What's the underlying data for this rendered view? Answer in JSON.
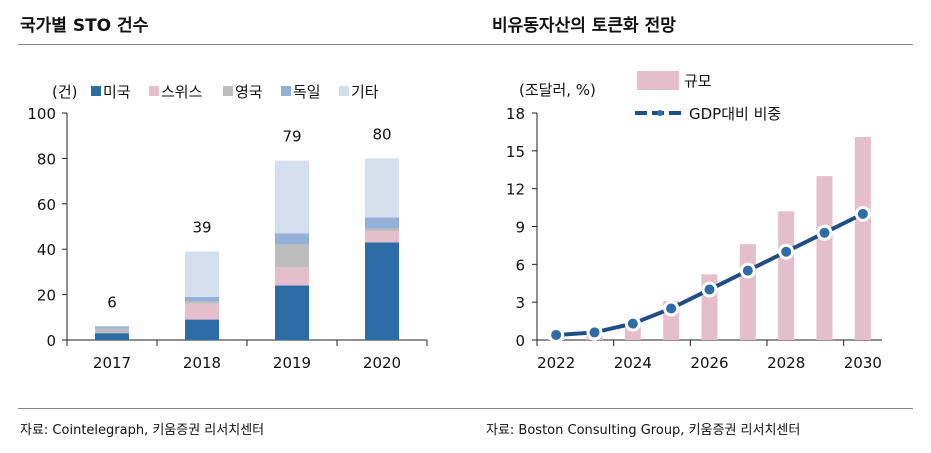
{
  "left": {
    "title": "국가별 STO 건수",
    "source": "자료: Cointelegraph, 키움증권 리서치센터"
  },
  "right": {
    "title": "비유동자산의 토큰화 전망",
    "source": "자료: Boston Consulting Group, 키움증권 리서치센터"
  },
  "chart_data": [
    {
      "type": "bar",
      "stacked": true,
      "unit_label": "(건)",
      "categories": [
        "2017",
        "2018",
        "2019",
        "2020"
      ],
      "series": [
        {
          "name": "미국",
          "color": "#2e6ca8",
          "values": [
            3,
            9,
            24,
            43
          ]
        },
        {
          "name": "스위스",
          "color": "#e4bfcb",
          "values": [
            0,
            7,
            8,
            5
          ]
        },
        {
          "name": "영국",
          "color": "#bdbdbd",
          "values": [
            2,
            1,
            10,
            1
          ]
        },
        {
          "name": "독일",
          "color": "#94b0d6",
          "values": [
            1,
            2,
            5,
            5
          ]
        },
        {
          "name": "기타",
          "color": "#d5e0ee",
          "values": [
            0,
            20,
            32,
            26
          ]
        }
      ],
      "totals": [
        6,
        39,
        79,
        80
      ],
      "ylim": [
        0,
        100
      ],
      "yticks": [
        0,
        20,
        40,
        60,
        80,
        100
      ]
    },
    {
      "type": "bar+line",
      "unit_label": "(조달러, %)",
      "categories": [
        "2022",
        "2023",
        "2024",
        "2025",
        "2026",
        "2027",
        "2028",
        "2029",
        "2030"
      ],
      "xtick_labels": [
        "2022",
        "2024",
        "2026",
        "2028",
        "2030"
      ],
      "series": [
        {
          "name": "규모",
          "type": "bar",
          "color": "#e4bfcb",
          "values": [
            0.1,
            0.3,
            1.1,
            3.1,
            5.2,
            7.6,
            10.2,
            13.0,
            16.1
          ]
        },
        {
          "name": "GDP대비 비중",
          "type": "line",
          "color": "#1f4e86",
          "values": [
            0.4,
            0.6,
            1.3,
            2.5,
            4.0,
            5.5,
            7.0,
            8.5,
            10.0
          ]
        }
      ],
      "ylim": [
        0,
        18
      ],
      "yticks": [
        0,
        3,
        6,
        9,
        12,
        15,
        18
      ]
    }
  ]
}
